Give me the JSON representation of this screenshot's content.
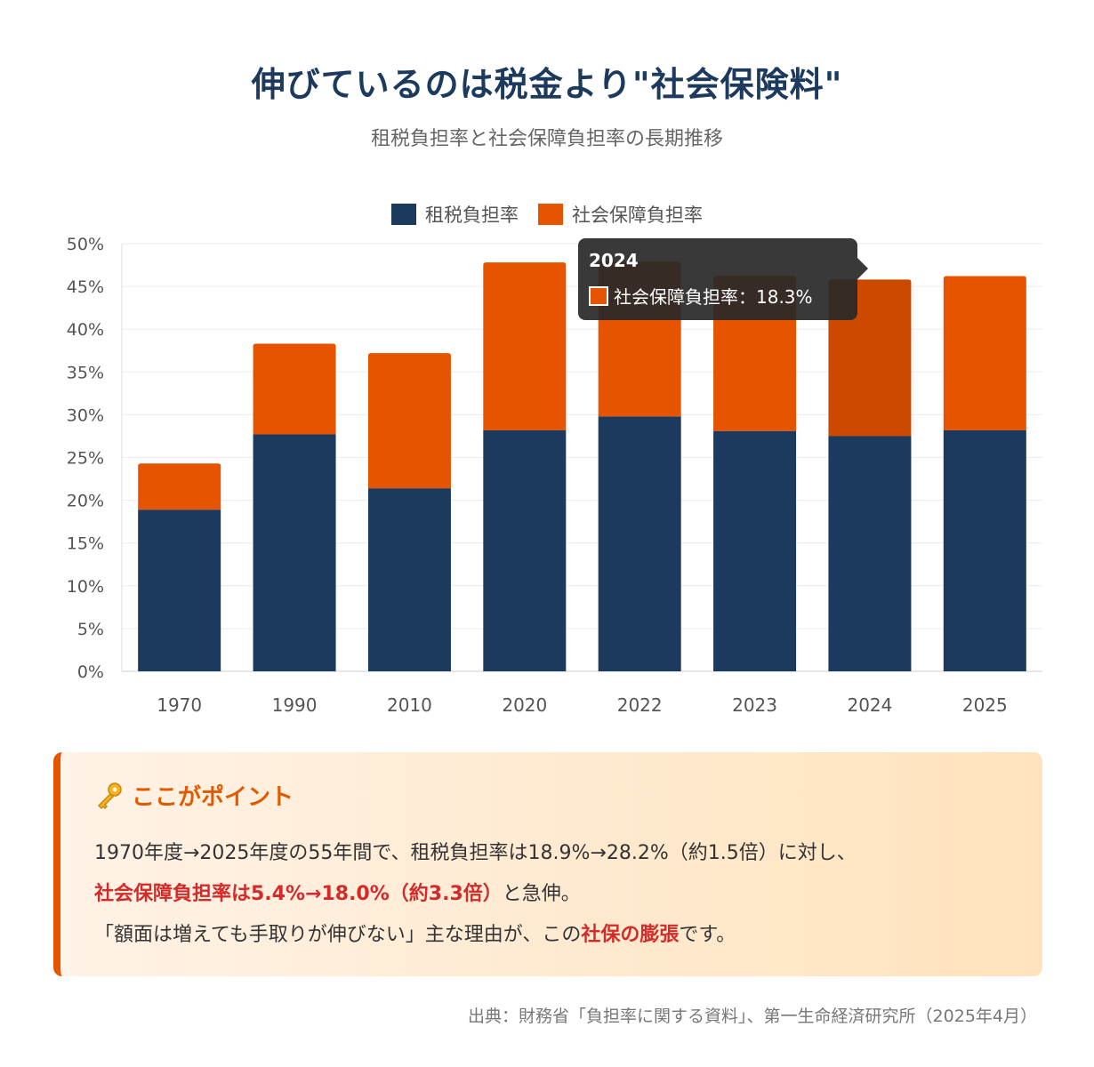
{
  "title": "伸びているのは税金より\"社会保険料\"",
  "subtitle": "租税負担率と社会保障負担率の長期推移",
  "colors": {
    "tax": "#1b3a5e",
    "social": "#e65400",
    "social_hover": "#cc4a00"
  },
  "chart_data": {
    "type": "bar",
    "stacked": true,
    "categories": [
      "1970",
      "1990",
      "2010",
      "2020",
      "2022",
      "2023",
      "2024",
      "2025"
    ],
    "series": [
      {
        "name": "租税負担率",
        "values": [
          18.9,
          27.7,
          21.4,
          28.2,
          29.8,
          28.1,
          27.5,
          28.2
        ]
      },
      {
        "name": "社会保障負担率",
        "values": [
          5.4,
          10.6,
          15.8,
          19.6,
          18.1,
          18.1,
          18.3,
          18.0
        ]
      }
    ],
    "ylim": [
      0,
      50
    ],
    "yticks": [
      "0%",
      "5%",
      "10%",
      "15%",
      "20%",
      "25%",
      "30%",
      "35%",
      "40%",
      "45%",
      "50%"
    ],
    "grid": true,
    "legend_position": "top"
  },
  "tooltip": {
    "year": "2024",
    "label": "社会保障負担率：18.3%"
  },
  "point": {
    "heading": "ここがポイント",
    "line1": "1970年度→2025年度の55年間で、租税負担率は18.9%→28.2%（約1.5倍）に対し、",
    "line2_highlight": "社会保障負担率は5.4%→18.0%（約3.3倍）",
    "line2_rest": "と急伸。",
    "line3_pre": "「額面は増えても手取りが伸びない」主な理由が、この",
    "line3_highlight": "社保の膨張",
    "line3_post": "です。"
  },
  "source": "出典：財務省「負担率に関する資料」、第一生命経済研究所（2025年4月）"
}
